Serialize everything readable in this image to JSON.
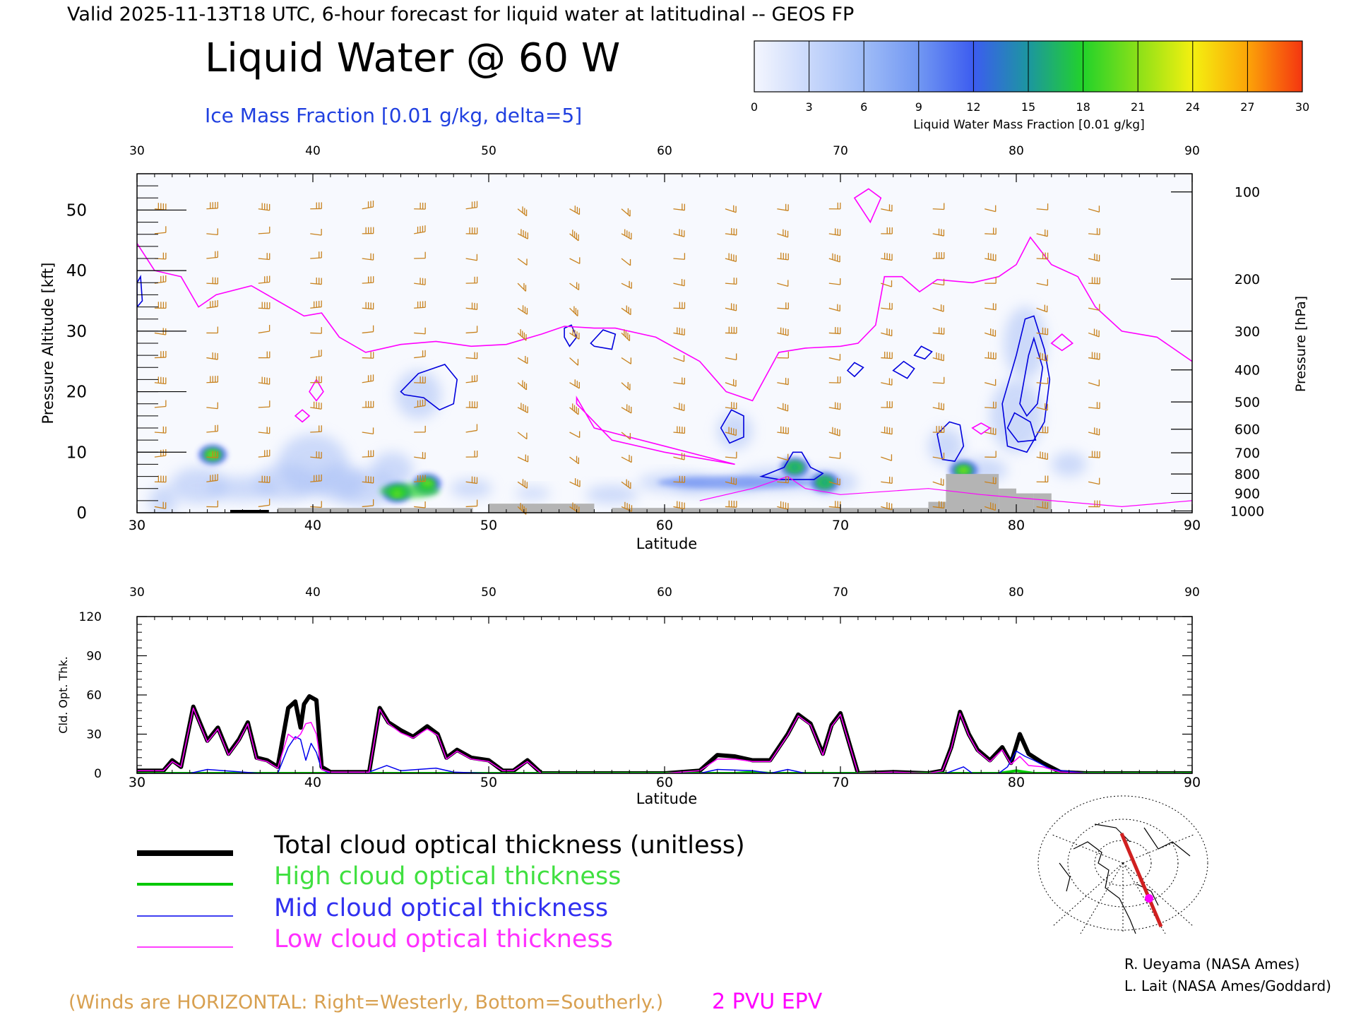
{
  "header": {
    "valid_line": "Valid 2025-11-13T18 UTC, 6-hour forecast for liquid water at latitudinal -- GEOS FP",
    "main_title": "Liquid Water @ 60 W",
    "ice_label": "Ice Mass Fraction [0.01 g/kg, delta=5]"
  },
  "colorbar": {
    "ticks": [
      "0",
      "3",
      "6",
      "9",
      "12",
      "15",
      "18",
      "21",
      "24",
      "27",
      "30"
    ],
    "label": "Liquid Water Mass Fraction [0.01 g/kg]",
    "colors": [
      "#f4f6fe",
      "#c9d8fb",
      "#9fbcf7",
      "#7197f2",
      "#3c5cf0",
      "#1c96a0",
      "#22d22a",
      "#8be018",
      "#f4f010",
      "#fca408",
      "#f43510"
    ]
  },
  "chart_data": [
    {
      "type": "heatmap",
      "name": "cross-section",
      "xlabel": "Latitude",
      "ylabel": "Pressure Altitude [kft]",
      "y2label": "Pressure [hPa]",
      "xlim": [
        30,
        90
      ],
      "ylim": [
        0,
        56
      ],
      "x_ticks": [
        "30",
        "40",
        "50",
        "60",
        "70",
        "80",
        "90"
      ],
      "top_x_ticks": [
        "30",
        "40",
        "50",
        "60",
        "70",
        "80",
        "90"
      ],
      "y_ticks": [
        "0",
        "10",
        "20",
        "30",
        "40",
        "50"
      ],
      "pressure_ticks": [
        {
          "label": "100",
          "kft": 53
        },
        {
          "label": "200",
          "kft": 38.6
        },
        {
          "label": "300",
          "kft": 30
        },
        {
          "label": "400",
          "kft": 23.6
        },
        {
          "label": "500",
          "kft": 18.3
        },
        {
          "label": "600",
          "kft": 13.8
        },
        {
          "label": "700",
          "kft": 9.9
        },
        {
          "label": "800",
          "kft": 6.4
        },
        {
          "label": "900",
          "kft": 3.2
        },
        {
          "label": "1000",
          "kft": 0.3
        }
      ],
      "liquid_water_blobs": [
        {
          "lat": 34.3,
          "kft": 9.6,
          "value": 20
        },
        {
          "lat": 44.8,
          "kft": 3.3,
          "value": 23
        },
        {
          "lat": 46.5,
          "kft": 4.8,
          "value": 22
        },
        {
          "lat": 67.4,
          "kft": 7.5,
          "value": 16
        },
        {
          "lat": 69.1,
          "kft": 5.0,
          "value": 14
        },
        {
          "lat": 77.0,
          "kft": 7.0,
          "value": 20
        }
      ],
      "epv_2pvu_line": [
        [
          30,
          44.5
        ],
        [
          31,
          40
        ],
        [
          32.5,
          39
        ],
        [
          33.5,
          34
        ],
        [
          34.5,
          36
        ],
        [
          36.5,
          37.5
        ],
        [
          38,
          35
        ],
        [
          39.5,
          32.5
        ],
        [
          40.5,
          33
        ],
        [
          41.5,
          29
        ],
        [
          43,
          26.5
        ],
        [
          45,
          27.8
        ],
        [
          47,
          28.3
        ],
        [
          49,
          27.5
        ],
        [
          51,
          27.8
        ],
        [
          53,
          29.5
        ],
        [
          54.3,
          30.8
        ],
        [
          56,
          30.5
        ],
        [
          57.2,
          30.5
        ],
        [
          59.5,
          29
        ],
        [
          62,
          25
        ],
        [
          63.5,
          20
        ],
        [
          65,
          18.5
        ],
        [
          66.5,
          26.5
        ],
        [
          68,
          27.2
        ],
        [
          70,
          27.5
        ],
        [
          71,
          28
        ],
        [
          72,
          31
        ],
        [
          72.5,
          39
        ],
        [
          73.5,
          39
        ],
        [
          74.5,
          36.5
        ],
        [
          75.5,
          38.5
        ],
        [
          77.5,
          38
        ],
        [
          79,
          39
        ],
        [
          80,
          41
        ],
        [
          80.8,
          45.5
        ],
        [
          82,
          41
        ],
        [
          83.5,
          39
        ],
        [
          84.5,
          34
        ],
        [
          86,
          30
        ],
        [
          88,
          29
        ],
        [
          90,
          25
        ]
      ],
      "ground": [
        [
          38,
          40.2,
          0.8
        ],
        [
          40.2,
          49.1,
          0.8
        ],
        [
          50,
          56,
          1.5
        ],
        [
          57,
          75,
          0.8
        ],
        [
          75,
          76,
          1.8
        ],
        [
          76,
          79,
          6.4
        ],
        [
          79,
          80,
          4
        ],
        [
          80,
          81,
          3.2
        ],
        [
          81,
          82,
          3.2
        ]
      ]
    },
    {
      "type": "line",
      "name": "cloud-optical-thickness",
      "xlabel": "Latitude",
      "ylabel": "Cld. Opt. Thk.",
      "xlim": [
        30,
        90
      ],
      "ylim": [
        0,
        120
      ],
      "x_ticks": [
        "30",
        "40",
        "50",
        "60",
        "70",
        "80",
        "90"
      ],
      "top_x_ticks": [
        "30",
        "40",
        "50",
        "60",
        "70",
        "80",
        "90"
      ],
      "y_ticks": [
        "0",
        "30",
        "60",
        "90",
        "120"
      ],
      "series": [
        {
          "name": "Total cloud optical thickness (unitless)",
          "color": "#000000",
          "x": [
            30,
            31.5,
            32,
            32.5,
            33.2,
            34,
            34.6,
            35.2,
            35.8,
            36.3,
            36.8,
            37.4,
            38,
            38.6,
            39,
            39.3,
            39.5,
            39.8,
            40.2,
            40.5,
            41,
            42,
            43.2,
            43.8,
            44.3,
            45,
            45.7,
            46.5,
            47.1,
            47.6,
            48.2,
            49,
            50,
            50.8,
            51.4,
            52.2,
            53,
            55,
            60,
            62,
            63,
            64,
            65,
            66,
            67,
            67.6,
            68.3,
            69,
            69.5,
            70,
            71,
            73,
            75,
            75.8,
            76.3,
            76.8,
            77.3,
            77.8,
            78.5,
            79.2,
            79.7,
            80.2,
            80.7,
            81.5,
            82.5,
            84,
            90
          ],
          "y": [
            2,
            2,
            10,
            5,
            51,
            25,
            35,
            15,
            26,
            39,
            12,
            10,
            5,
            50,
            55,
            35,
            53,
            59,
            56,
            5,
            1,
            1,
            1,
            50,
            39,
            33,
            28,
            36,
            30,
            12,
            18,
            12,
            10,
            2,
            2,
            10,
            0,
            0,
            0,
            2,
            14,
            13,
            10,
            10,
            30,
            45,
            38,
            15,
            37,
            46,
            0,
            1,
            0,
            2,
            20,
            47,
            30,
            18,
            10,
            20,
            8,
            30,
            15,
            8,
            1,
            0,
            0
          ]
        },
        {
          "name": "High cloud optical thickness",
          "color": "#00c800",
          "x": [
            30,
            50,
            60,
            64,
            65,
            66,
            70,
            79,
            79.5,
            80,
            80.5,
            81,
            82,
            90
          ],
          "y": [
            0,
            0,
            0,
            0,
            1,
            0,
            0,
            0,
            1,
            2,
            1,
            0,
            0,
            0
          ]
        },
        {
          "name": "Mid cloud optical thickness",
          "color": "#0000ee",
          "x": [
            30,
            31,
            33,
            34,
            37,
            38,
            38.6,
            39,
            39.3,
            39.6,
            39.9,
            40.2,
            40.5,
            41,
            43,
            44.2,
            45,
            47,
            48,
            50,
            60,
            62,
            63,
            65,
            66,
            67,
            68,
            70,
            72,
            75,
            76,
            77,
            77.5,
            79,
            79.5,
            80,
            80.5,
            81,
            82,
            84,
            90
          ],
          "y": [
            0,
            0,
            0,
            3,
            0,
            0,
            20,
            28,
            26,
            10,
            23,
            16,
            3,
            0,
            0,
            6,
            2,
            4,
            1,
            0,
            0,
            0,
            3,
            2,
            0,
            3,
            0,
            0,
            0,
            0,
            0,
            5,
            0,
            0,
            5,
            17,
            13,
            10,
            3,
            0,
            0
          ]
        },
        {
          "name": "Low cloud optical thickness",
          "color": "#ff00ff",
          "x": [
            30,
            31.5,
            32,
            32.5,
            33.2,
            34,
            34.6,
            35.2,
            35.8,
            36.3,
            36.8,
            37.4,
            38,
            38.6,
            39,
            39.3,
            39.6,
            39.9,
            40.2,
            40.5,
            41,
            42,
            43.2,
            43.8,
            44.3,
            45,
            45.7,
            46.5,
            47.1,
            47.6,
            48.2,
            49,
            50,
            50.8,
            51.4,
            52.2,
            53,
            55,
            60,
            62,
            63,
            64,
            65,
            66,
            67,
            67.6,
            68.3,
            69,
            69.5,
            70,
            71,
            73,
            75,
            75.8,
            76.3,
            76.8,
            77.3,
            77.8,
            78.5,
            79.2,
            79.7,
            80.2,
            80.7,
            81.5,
            82.5,
            84,
            90
          ],
          "y": [
            2,
            2,
            9,
            5,
            50,
            24,
            34,
            14,
            25,
            38,
            11,
            9,
            4,
            30,
            26,
            30,
            38,
            39,
            30,
            3,
            1,
            1,
            1,
            49,
            38,
            31,
            27,
            34,
            29,
            11,
            17,
            11,
            9,
            2,
            2,
            9,
            0,
            0,
            0,
            2,
            11,
            11,
            9,
            9,
            29,
            44,
            37,
            14,
            36,
            45,
            0,
            1,
            0,
            2,
            19,
            46,
            29,
            17,
            9,
            18,
            7,
            13,
            6,
            5,
            1,
            0,
            0
          ]
        }
      ]
    }
  ],
  "legend": {
    "total": "Total cloud optical thickness (unitless)",
    "high": "High cloud optical thickness",
    "mid": "Mid cloud optical thickness",
    "low": "Low cloud optical thickness"
  },
  "footer": {
    "winds_note": "(Winds are HORIZONTAL: Right=Westerly, Bottom=Southerly.)",
    "epv_label": "2 PVU EPV",
    "credit1": "R. Ueyama (NASA Ames)",
    "credit2": "L. Lait (NASA Ames/Goddard)"
  },
  "colors": {
    "wind": "#c8821e",
    "epv": "#ff00ff",
    "ice": "#0000dd",
    "ground": "#b4b4b4",
    "title_blue": "#2040e0",
    "winds_note": "#d8a050"
  }
}
